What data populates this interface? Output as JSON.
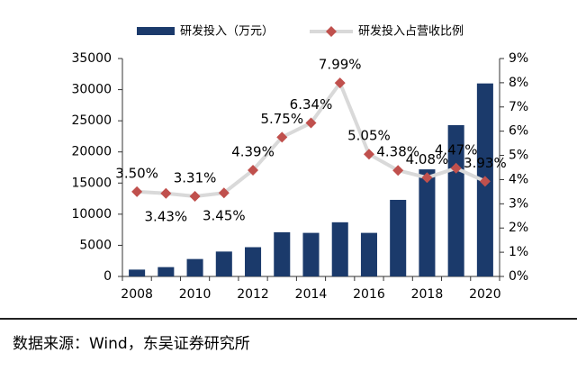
{
  "chart_data": {
    "type": "bar-line",
    "categories": [
      2008,
      null,
      2010,
      null,
      2012,
      null,
      2014,
      null,
      2016,
      null,
      2018,
      null,
      2020
    ],
    "series": [
      {
        "name": "研发投入（万元）",
        "type": "bar",
        "color": "#1b3a6b",
        "axis": "y",
        "values": [
          1100,
          1500,
          2800,
          4000,
          4700,
          7100,
          7000,
          8700,
          7000,
          12300,
          17200,
          24300,
          31000
        ]
      },
      {
        "name": "研发投入占营收比例",
        "type": "line",
        "color": "#d9d9d9",
        "marker_color": "#c0504d",
        "axis": "y2",
        "values": [
          3.5,
          3.43,
          3.31,
          3.45,
          4.39,
          5.75,
          6.34,
          7.99,
          5.05,
          4.38,
          4.08,
          4.47,
          3.93
        ],
        "value_labels": [
          "3.50%",
          "3.43%",
          "3.31%",
          "3.45%",
          "4.39%",
          "5.75%",
          "6.34%",
          "7.99%",
          "5.05%",
          "4.38%",
          "4.08%",
          "4.47%",
          "3.93%"
        ]
      }
    ],
    "ylim": [
      0,
      35000
    ],
    "yticks": [
      0,
      5000,
      10000,
      15000,
      20000,
      25000,
      30000,
      35000
    ],
    "y2lim": [
      0,
      9
    ],
    "y2ticks": [
      {
        "value": 0,
        "label": "0%"
      },
      {
        "value": 1,
        "label": "1%"
      },
      {
        "value": 2,
        "label": "2%"
      },
      {
        "value": 3,
        "label": "3%"
      },
      {
        "value": 4,
        "label": "4%"
      },
      {
        "value": 5,
        "label": "5%"
      },
      {
        "value": 6,
        "label": "6%"
      },
      {
        "value": 7,
        "label": "7%"
      },
      {
        "value": 8,
        "label": "8%"
      },
      {
        "value": 9,
        "label": "9%"
      }
    ],
    "grid": false,
    "legend": "top",
    "source": "数据来源：Wind，东吴证券研究所"
  }
}
